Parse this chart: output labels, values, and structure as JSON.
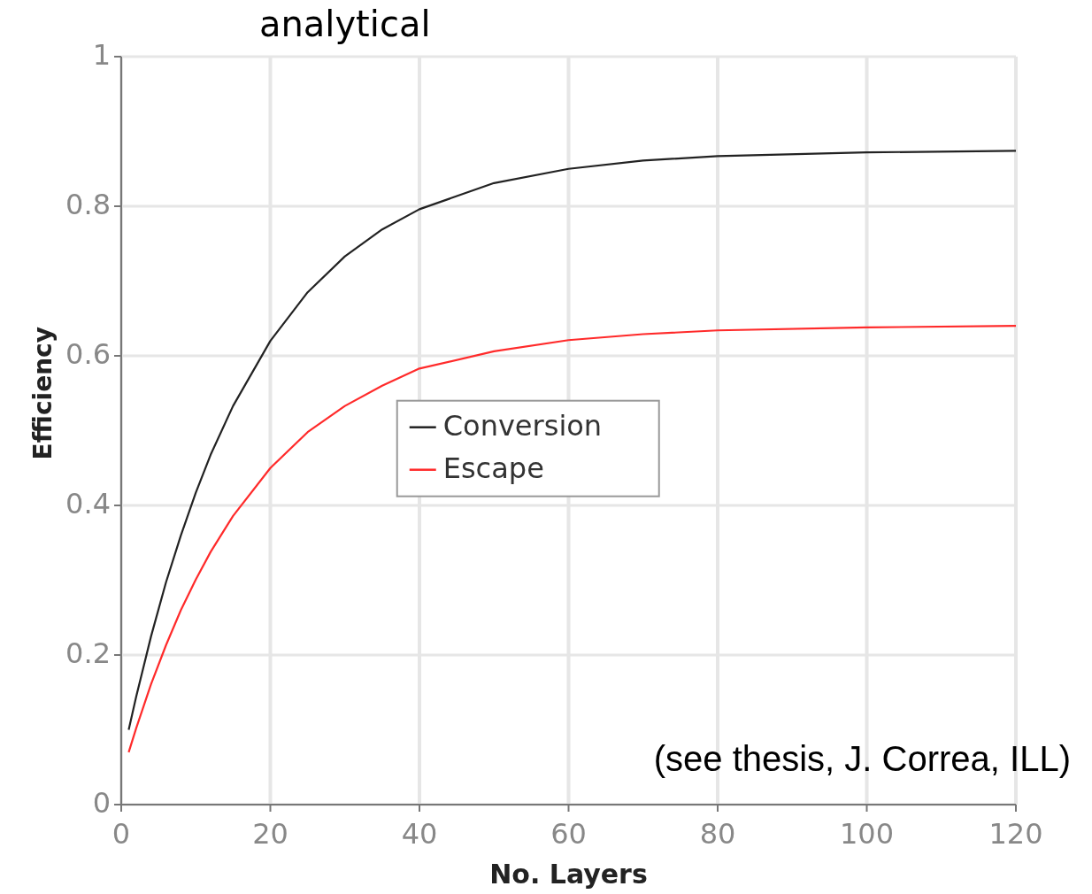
{
  "chart_data": {
    "type": "line",
    "title": "analytical",
    "xlabel": "No. Layers",
    "ylabel": "Efficiency",
    "x": [
      1,
      2,
      4,
      6,
      8,
      10,
      12,
      15,
      20,
      25,
      30,
      35,
      40,
      50,
      60,
      70,
      80,
      100,
      120
    ],
    "series": [
      {
        "name": "Conversion",
        "color": "#222222",
        "values": [
          0.1,
          0.144,
          0.225,
          0.297,
          0.36,
          0.417,
          0.468,
          0.533,
          0.62,
          0.685,
          0.733,
          0.769,
          0.796,
          0.831,
          0.85,
          0.861,
          0.867,
          0.872,
          0.874
        ]
      },
      {
        "name": "Escape",
        "color": "#ff2a2a",
        "values": [
          0.07,
          0.102,
          0.161,
          0.213,
          0.26,
          0.301,
          0.338,
          0.386,
          0.45,
          0.498,
          0.533,
          0.56,
          0.583,
          0.606,
          0.621,
          0.629,
          0.634,
          0.638,
          0.64
        ]
      }
    ],
    "xlim": [
      0,
      120
    ],
    "xticks": [
      0,
      20,
      40,
      60,
      80,
      100,
      120
    ],
    "ylim": [
      0,
      1
    ],
    "yticks": [
      0,
      {
        "value": 0.2,
        "label": "0.2"
      },
      {
        "value": 0.4,
        "label": "0.4"
      },
      {
        "value": 0.6,
        "label": "0.6"
      },
      {
        "value": 0.8,
        "label": "0.8"
      },
      1
    ],
    "grid": true,
    "legend": "center",
    "marker": "none",
    "line_style": "solid",
    "annotations": [
      "(see thesis, J. Correa, ILL)"
    ]
  }
}
